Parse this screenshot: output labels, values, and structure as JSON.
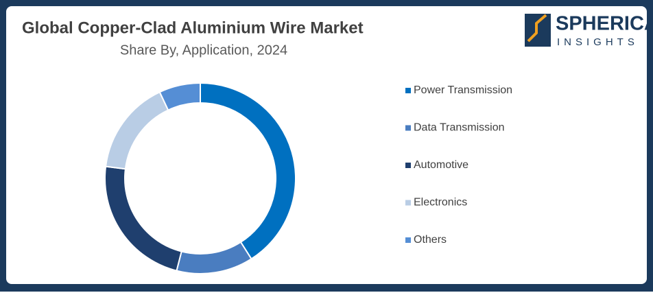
{
  "chart_data": {
    "type": "donut",
    "title": "Global Copper-Clad Aluminium Wire Market",
    "subtitle": "Share By, Application, 2024",
    "categories": [
      "Power Transmission",
      "Data Transmission",
      "Automotive",
      "Electronics",
      "Others"
    ],
    "values": [
      41,
      13,
      23,
      16,
      7
    ],
    "colors": [
      "#0070c0",
      "#4a7dc0",
      "#1f3f6e",
      "#b9cde5",
      "#558ed5"
    ],
    "legend": "right"
  },
  "logo": {
    "name": "SPHERICAL",
    "tagline": "INSIGHTS"
  }
}
